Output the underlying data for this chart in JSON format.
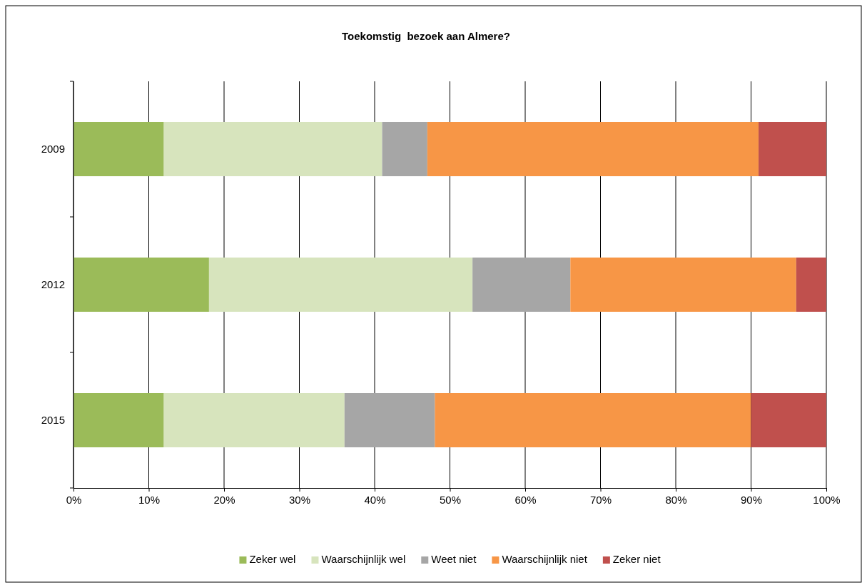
{
  "chart_data": {
    "type": "bar",
    "title": "Toekomstig  bezoek aan Almere?",
    "orientation": "horizontal",
    "stacked": true,
    "categories": [
      "2009",
      "2012",
      "2015"
    ],
    "series": [
      {
        "name": "Zeker wel",
        "color": "#9bbb59",
        "values": [
          12,
          18,
          12
        ]
      },
      {
        "name": "Waarschijnlijk wel",
        "color": "#d7e4bd",
        "values": [
          29,
          35,
          24
        ]
      },
      {
        "name": "Weet niet",
        "color": "#a6a6a6",
        "values": [
          6,
          13,
          12
        ]
      },
      {
        "name": "Waarschijnlijk niet",
        "color": "#f79646",
        "values": [
          44,
          30,
          42
        ]
      },
      {
        "name": "Zeker niet",
        "color": "#c0504d",
        "values": [
          9,
          4,
          10
        ]
      }
    ],
    "xlim": [
      0,
      100
    ],
    "xticks": [
      {
        "value": 0,
        "label": "0%"
      },
      {
        "value": 10,
        "label": "10%"
      },
      {
        "value": 20,
        "label": "20%"
      },
      {
        "value": 30,
        "label": "30%"
      },
      {
        "value": 40,
        "label": "40%"
      },
      {
        "value": 50,
        "label": "50%"
      },
      {
        "value": 60,
        "label": "60%"
      },
      {
        "value": 70,
        "label": "70%"
      },
      {
        "value": 80,
        "label": "80%"
      },
      {
        "value": 90,
        "label": "90%"
      },
      {
        "value": 100,
        "label": "100%"
      }
    ],
    "grid": "x",
    "legend": "bottom"
  }
}
